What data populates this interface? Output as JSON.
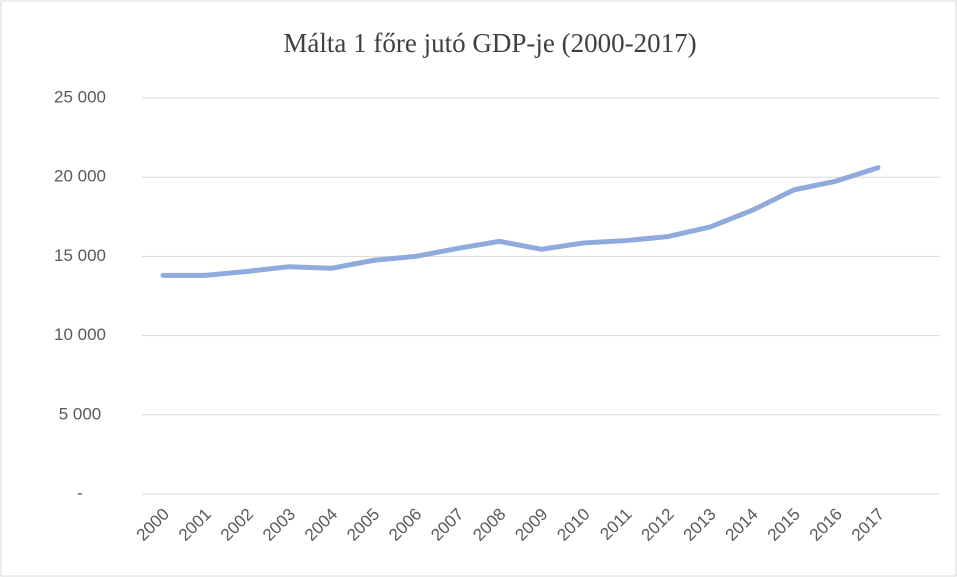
{
  "chart_data": {
    "type": "line",
    "title": "Málta 1 főre jutó GDP-je (2000-2017)",
    "categories": [
      "2000",
      "2001",
      "2002",
      "2003",
      "2004",
      "2005",
      "2006",
      "2007",
      "2008",
      "2009",
      "2010",
      "2011",
      "2012",
      "2013",
      "2014",
      "2015",
      "2016",
      "2017"
    ],
    "values": [
      13800,
      13800,
      14050,
      14350,
      14250,
      14750,
      15000,
      15500,
      15950,
      15450,
      15850,
      16000,
      16250,
      16850,
      17900,
      19200,
      19750,
      20600
    ],
    "color": "#8faadc",
    "ylim": [
      0,
      25000
    ],
    "yticks": [
      {
        "value": 0,
        "label": "-"
      },
      {
        "value": 5000,
        "label": "5 000"
      },
      {
        "value": 10000,
        "label": "10 000"
      },
      {
        "value": 15000,
        "label": "15 000"
      },
      {
        "value": 20000,
        "label": "20 000"
      },
      {
        "value": 25000,
        "label": "25 000"
      }
    ],
    "grid": true
  }
}
